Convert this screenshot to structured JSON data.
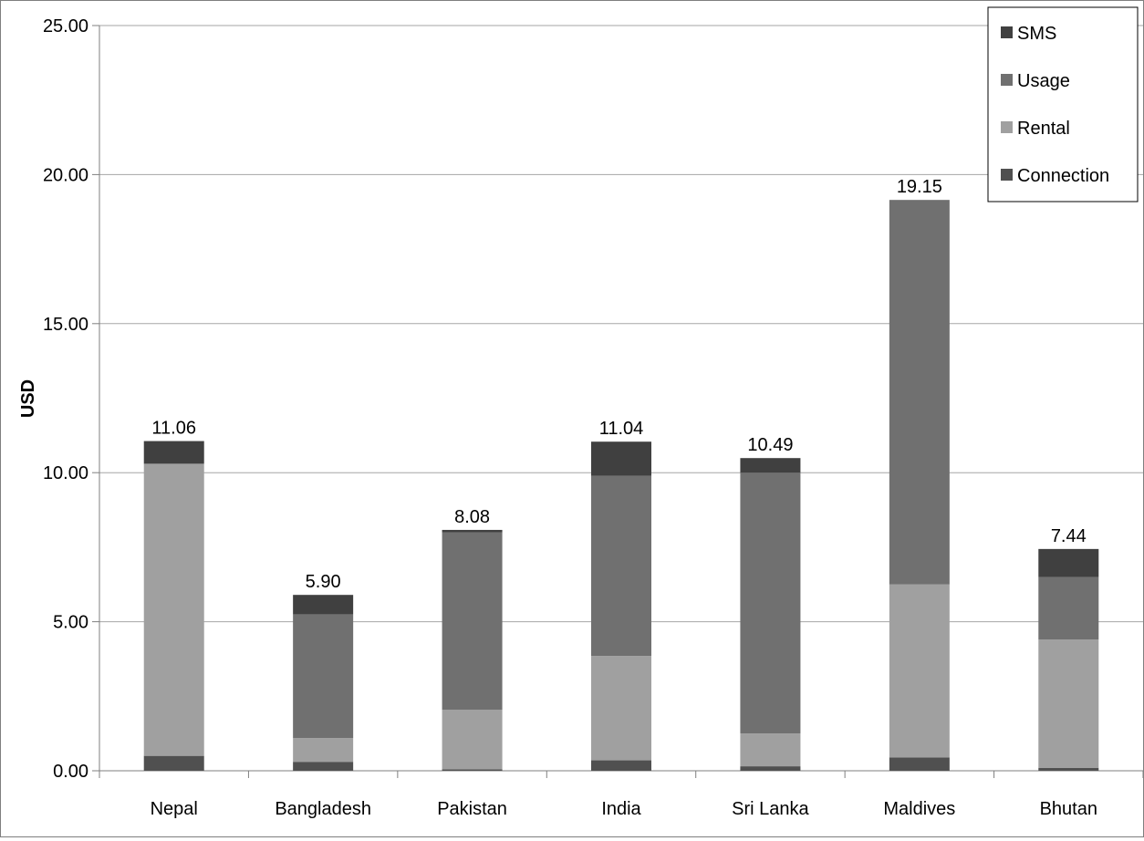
{
  "colors": {
    "SMS": "#404040",
    "Usage": "#707070",
    "Rental": "#a0a0a0",
    "Connection": "#505050",
    "gridline": "#a6a6a6",
    "axis": "#7f7f7f"
  },
  "chart_data": {
    "type": "bar",
    "stacked": true,
    "title": "",
    "xlabel": "",
    "ylabel": "USD",
    "ylim": [
      0,
      25
    ],
    "yticks": [
      "0.00",
      "5.00",
      "10.00",
      "15.00",
      "20.00",
      "25.00"
    ],
    "ytick_values": [
      0,
      5,
      10,
      15,
      20,
      25
    ],
    "grid": true,
    "legend_position": "top-right",
    "legend": [
      "SMS",
      "Usage",
      "Rental",
      "Connection"
    ],
    "categories": [
      "Nepal",
      "Bangladesh",
      "Pakistan",
      "India",
      "Sri Lanka",
      "Maldives",
      "Bhutan"
    ],
    "series": [
      {
        "name": "Connection",
        "values": [
          0.5,
          0.3,
          0.05,
          0.35,
          0.15,
          0.45,
          0.1
        ]
      },
      {
        "name": "Rental",
        "values": [
          9.8,
          0.8,
          2.0,
          3.5,
          1.1,
          5.8,
          4.3
        ]
      },
      {
        "name": "Usage",
        "values": [
          0.0,
          4.15,
          5.95,
          6.05,
          8.75,
          12.9,
          2.1
        ]
      },
      {
        "name": "SMS",
        "values": [
          0.76,
          0.65,
          0.08,
          1.14,
          0.49,
          0.0,
          0.94
        ]
      }
    ],
    "totals": [
      "11.06",
      "5.90",
      "8.08",
      "11.04",
      "10.49",
      "19.15",
      "7.44"
    ],
    "total_values": [
      11.06,
      5.9,
      8.08,
      11.04,
      10.49,
      19.15,
      7.44
    ]
  }
}
